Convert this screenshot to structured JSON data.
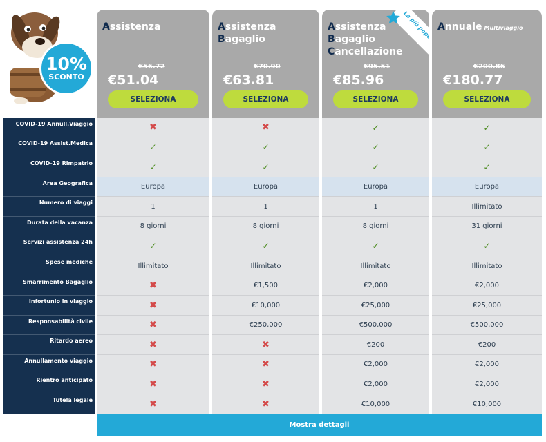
{
  "promo": {
    "percent": "10%",
    "label": "SCONTO"
  },
  "plans": [
    {
      "title_lines": [
        [
          "A",
          "ssistenza"
        ]
      ],
      "title_sub": "",
      "old_price": "€56.72",
      "price": "€51.04",
      "button": "SELEZIONA"
    },
    {
      "title_lines": [
        [
          "A",
          "ssistenza"
        ],
        [
          "B",
          "agaglio"
        ]
      ],
      "title_sub": "",
      "old_price": "€70.90",
      "price": "€63.81",
      "button": "SELEZIONA"
    },
    {
      "title_lines": [
        [
          "A",
          "ssistenza"
        ],
        [
          "B",
          "agaglio"
        ],
        [
          "C",
          "ancellazione"
        ]
      ],
      "title_sub": "",
      "old_price": "€95.51",
      "price": "€85.96",
      "button": "SELEZIONA",
      "ribbon": "La più popolare"
    },
    {
      "title_lines": [
        [
          "A",
          "nnuale"
        ]
      ],
      "title_sub": "Multiviaggio",
      "old_price": "€200.86",
      "price": "€180.77",
      "button": "SELEZIONA"
    }
  ],
  "rows": [
    {
      "label": "COVID-19 Annull.Viaggio",
      "values": [
        "x",
        "x",
        "v",
        "v"
      ]
    },
    {
      "label": "COVID-19 Assist.Medica",
      "values": [
        "v",
        "v",
        "v",
        "v"
      ]
    },
    {
      "label": "COVID-19 Rimpatrio",
      "values": [
        "v",
        "v",
        "v",
        "v"
      ]
    },
    {
      "label": "Area Geografica",
      "values": [
        "Europa",
        "Europa",
        "Europa",
        "Europa"
      ],
      "highlight": true
    },
    {
      "label": "Numero di viaggi",
      "values": [
        "1",
        "1",
        "1",
        "Illimitato"
      ]
    },
    {
      "label": "Durata della vacanza",
      "values": [
        "8 giorni",
        "8 giorni",
        "8 giorni",
        "31 giorni"
      ]
    },
    {
      "label": "Servizi assistenza 24h",
      "values": [
        "v",
        "v",
        "v",
        "v"
      ]
    },
    {
      "label": "Spese mediche",
      "values": [
        "Illimitato",
        "Illimitato",
        "Illimitato",
        "Illimitato"
      ]
    },
    {
      "label": "Smarrimento Bagaglio",
      "values": [
        "x",
        "€1,500",
        "€2,000",
        "€2,000"
      ]
    },
    {
      "label": "Infortunio in viaggio",
      "values": [
        "x",
        "€10,000",
        "€25,000",
        "€25,000"
      ]
    },
    {
      "label": "Responsabilità civile",
      "values": [
        "x",
        "€250,000",
        "€500,000",
        "€500,000"
      ]
    },
    {
      "label": "Ritardo aereo",
      "values": [
        "x",
        "x",
        "€200",
        "€200"
      ]
    },
    {
      "label": "Annullamento viaggio",
      "values": [
        "x",
        "x",
        "€2,000",
        "€2,000"
      ]
    },
    {
      "label": "Rientro anticipato",
      "values": [
        "x",
        "x",
        "€2,000",
        "€2,000"
      ]
    },
    {
      "label": "Tutela legale",
      "values": [
        "x",
        "x",
        "€10,000",
        "€10,000"
      ]
    }
  ],
  "details_button": "Mostra dettagli",
  "colors": {
    "header_gray": "#a9a9a9",
    "select_green": "#bedb3d",
    "label_navy": "#15304f",
    "accent_blue": "#23a9d7",
    "check_green": "#4a8a1c",
    "cross_red": "#d44a4a"
  }
}
